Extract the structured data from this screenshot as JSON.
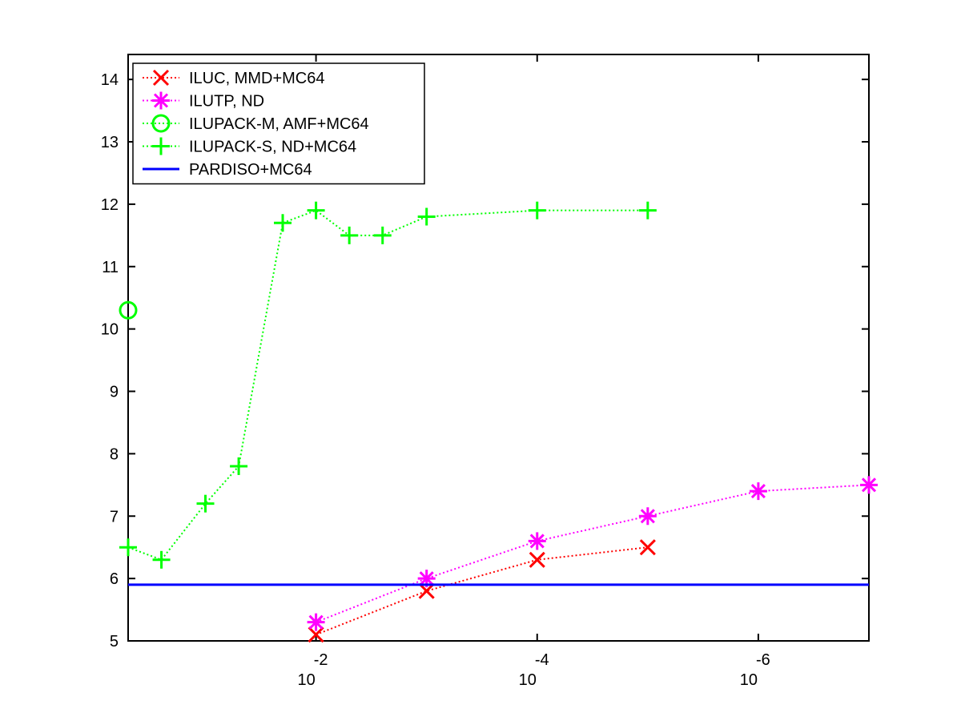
{
  "chart_data": {
    "type": "line",
    "title": "",
    "xlabel": "",
    "ylabel": "",
    "x_scale": "log",
    "x_reversed": true,
    "xlim": [
      0.5,
      1e-07
    ],
    "ylim": [
      5,
      14.4
    ],
    "y_ticks": [
      5,
      6,
      7,
      8,
      9,
      10,
      11,
      12,
      13,
      14
    ],
    "x_ticks": [
      {
        "value": 0.01,
        "base": "10",
        "exponent": "-2"
      },
      {
        "value": 0.0001,
        "base": "10",
        "exponent": "-4"
      },
      {
        "value": 1e-06,
        "base": "10",
        "exponent": "-6"
      }
    ],
    "grid": false,
    "legend_position": "top-left",
    "series": [
      {
        "name": "ILUC, MMD+MC64",
        "color": "#ff0000",
        "marker": "x",
        "line": "dotted",
        "points": [
          {
            "x": 0.01,
            "y": 5.1
          },
          {
            "x": 0.001,
            "y": 5.8
          },
          {
            "x": 0.0001,
            "y": 6.3
          },
          {
            "x": 1e-05,
            "y": 6.5
          }
        ]
      },
      {
        "name": "ILUTP,  ND",
        "color": "#ff00ff",
        "marker": "star",
        "line": "dotted",
        "points": [
          {
            "x": 0.01,
            "y": 5.3
          },
          {
            "x": 0.001,
            "y": 6.0
          },
          {
            "x": 0.0001,
            "y": 6.6
          },
          {
            "x": 1e-05,
            "y": 7.0
          },
          {
            "x": 1e-06,
            "y": 7.4
          },
          {
            "x": 1e-07,
            "y": 7.5
          }
        ]
      },
      {
        "name": "ILUPACK-M, AMF+MC64",
        "color": "#00ff00",
        "marker": "o",
        "line": "dotted",
        "points": [
          {
            "x": 0.5,
            "y": 10.3
          }
        ]
      },
      {
        "name": "ILUPACK-S, ND+MC64",
        "color": "#00ff00",
        "marker": "+",
        "line": "dotted",
        "points": [
          {
            "x": 0.5,
            "y": 6.5
          },
          {
            "x": 0.25,
            "y": 6.3
          },
          {
            "x": 0.1,
            "y": 7.2
          },
          {
            "x": 0.05,
            "y": 7.8
          },
          {
            "x": 0.02,
            "y": 11.7
          },
          {
            "x": 0.01,
            "y": 11.9
          },
          {
            "x": 0.005,
            "y": 11.5
          },
          {
            "x": 0.0025,
            "y": 11.5
          },
          {
            "x": 0.001,
            "y": 11.8
          },
          {
            "x": 0.0001,
            "y": 11.9
          },
          {
            "x": 1e-05,
            "y": 11.9
          }
        ]
      },
      {
        "name": "PARDISO+MC64",
        "color": "#0000ff",
        "marker": "none",
        "line": "solid",
        "points": [
          {
            "x": 0.5,
            "y": 5.9
          },
          {
            "x": 1e-07,
            "y": 5.9
          }
        ]
      }
    ]
  }
}
